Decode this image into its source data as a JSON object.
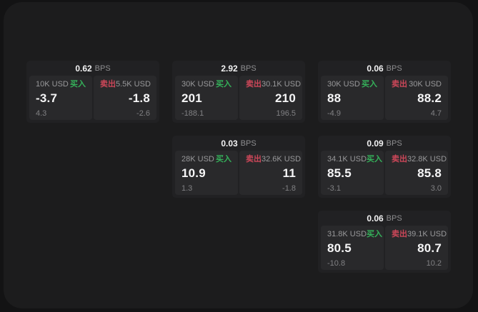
{
  "labels": {
    "bps": "BPS",
    "buy": "买入",
    "sell": "卖出"
  },
  "colors": {
    "outer_bg": "#131314",
    "panel_bg": "#1c1c1d",
    "card_bg": "#212123",
    "tile_bg": "#29292b",
    "buy_green": "#35b15a",
    "sell_red": "#cd4759",
    "value_white": "#f5f5f6",
    "label_gray": "#98989a",
    "dim_gray": "#808083"
  },
  "cards": [
    {
      "bps": "0.62",
      "col": 0,
      "row": 0,
      "buy": {
        "size": "10K USD",
        "value": "-3.7",
        "delta": "4.3"
      },
      "sell": {
        "size": "5.5K USD",
        "value": "-1.8",
        "delta": "-2.6"
      }
    },
    {
      "bps": "2.92",
      "col": 1,
      "row": 0,
      "buy": {
        "size": "30K USD",
        "value": "201",
        "delta": "-188.1"
      },
      "sell": {
        "size": "30.1K USD",
        "value": "210",
        "delta": "196.5"
      }
    },
    {
      "bps": "0.06",
      "col": 2,
      "row": 0,
      "buy": {
        "size": "30K USD",
        "value": "88",
        "delta": "-4.9"
      },
      "sell": {
        "size": "30K USD",
        "value": "88.2",
        "delta": "4.7"
      }
    },
    {
      "bps": "0.03",
      "col": 1,
      "row": 1,
      "buy": {
        "size": "28K USD",
        "value": "10.9",
        "delta": "1.3"
      },
      "sell": {
        "size": "32.6K USD",
        "value": "11",
        "delta": "-1.8"
      }
    },
    {
      "bps": "0.09",
      "col": 2,
      "row": 1,
      "buy": {
        "size": "34.1K USD",
        "value": "85.5",
        "delta": "-3.1"
      },
      "sell": {
        "size": "32.8K USD",
        "value": "85.8",
        "delta": "3.0"
      }
    },
    {
      "bps": "0.06",
      "col": 2,
      "row": 2,
      "buy": {
        "size": "31.8K USD",
        "value": "80.5",
        "delta": "-10.8"
      },
      "sell": {
        "size": "39.1K USD",
        "value": "80.7",
        "delta": "10.2"
      }
    }
  ]
}
